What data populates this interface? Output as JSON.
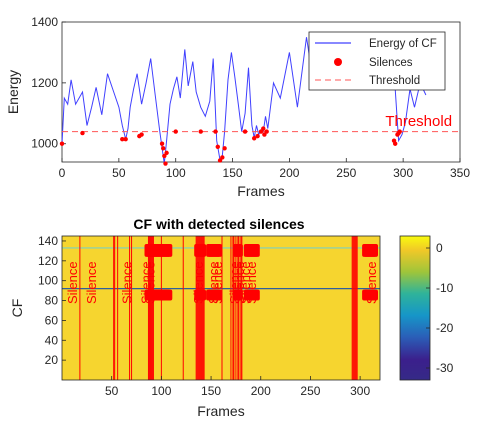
{
  "chart_data": [
    {
      "type": "line",
      "title": "",
      "xlabel": "Frames",
      "ylabel": "Energy",
      "xlim": [
        0,
        350
      ],
      "ylim": [
        940,
        1400
      ],
      "xticks": [
        0,
        50,
        100,
        150,
        200,
        250,
        300,
        350
      ],
      "yticks": [
        1000,
        1200,
        1400
      ],
      "legend_position": "top-right",
      "annotation": {
        "text": "Threshold",
        "x": 343,
        "y": 1058
      },
      "threshold": 1040,
      "series": [
        {
          "name": "Energy of CF",
          "color": "#4040ff",
          "x": [
            0,
            2,
            5,
            8,
            12,
            18,
            22,
            26,
            30,
            35,
            40,
            45,
            50,
            53,
            56,
            58,
            60,
            63,
            66,
            70,
            74,
            78,
            82,
            86,
            89,
            90,
            92,
            95,
            98,
            101,
            104,
            108,
            111,
            115,
            118,
            122,
            126,
            130,
            133,
            136,
            139,
            141,
            143,
            146,
            149,
            152,
            155,
            158,
            161,
            164,
            167,
            169,
            171,
            173,
            175,
            177,
            179,
            181,
            186,
            192,
            200,
            207,
            215,
            222,
            230,
            240,
            250,
            262,
            275,
            283,
            290,
            293,
            296,
            299,
            302,
            306,
            310,
            315,
            320
          ],
          "y": [
            1000,
            1150,
            1130,
            1210,
            1130,
            1170,
            1060,
            1120,
            1185,
            1095,
            1230,
            1175,
            1120,
            1060,
            1015,
            1050,
            1120,
            1180,
            1230,
            1130,
            1200,
            1280,
            1160,
            1040,
            960,
            935,
            1010,
            1130,
            1180,
            1220,
            1150,
            1310,
            1190,
            1270,
            1170,
            1120,
            1090,
            1140,
            1280,
            1010,
            945,
            960,
            1040,
            1210,
            1300,
            1220,
            1130,
            1040,
            1100,
            1250,
            1060,
            1020,
            1060,
            1030,
            1045,
            1040,
            1090,
            1050,
            1200,
            1150,
            1300,
            1120,
            1350,
            1180,
            1320,
            1250,
            1320,
            1300,
            1330,
            1180,
            1320,
            1180,
            1010,
            1030,
            1070,
            1180,
            1120,
            1200,
            1160
          ]
        },
        {
          "name": "Silences",
          "color": "#ff0000",
          "x": [
            0,
            18,
            53,
            56,
            68,
            70,
            88,
            89,
            90,
            91,
            92,
            100,
            122,
            135,
            137,
            139,
            141,
            143,
            161,
            169,
            172,
            175,
            177,
            178,
            180,
            292,
            293,
            295,
            296,
            297
          ],
          "y": [
            1000,
            1035,
            1015,
            1015,
            1025,
            1030,
            1000,
            985,
            960,
            935,
            970,
            1040,
            1040,
            1040,
            990,
            945,
            955,
            985,
            1040,
            1018,
            1025,
            1040,
            1050,
            1030,
            1040,
            1010,
            1000,
            1030,
            1035,
            1040
          ]
        },
        {
          "name": "Threshold",
          "color": "#ff5555",
          "x": [
            0,
            350
          ],
          "y": [
            1040,
            1040
          ]
        }
      ]
    },
    {
      "type": "heatmap",
      "title": "CF with detected silences",
      "xlabel": "Frames",
      "ylabel": "CF",
      "xlim": [
        0,
        320
      ],
      "ylim": [
        0,
        145
      ],
      "xticks": [
        50,
        100,
        150,
        200,
        250,
        300
      ],
      "yticks": [
        20,
        40,
        60,
        80,
        100,
        120,
        140
      ],
      "colorbar": {
        "ticks": [
          0,
          -10,
          -20,
          -30
        ],
        "range": [
          -33,
          3
        ],
        "colors": [
          "#fde725",
          "#d5e21a",
          "#8fd744",
          "#35b779",
          "#21918c",
          "#31688e",
          "#443983",
          "#3b1f8c",
          "#352a87"
        ]
      },
      "background_color": "#f6d52f",
      "silence_color": "#ff0000",
      "silence_frames": [
        18,
        52,
        53,
        56,
        68,
        70,
        87,
        88,
        89,
        90,
        91,
        92,
        100,
        122,
        135,
        136,
        137,
        138,
        139,
        140,
        141,
        142,
        143,
        161,
        170,
        172,
        173,
        175,
        177,
        178,
        180,
        181,
        292,
        293,
        294,
        295,
        296,
        297
      ],
      "horizontal_lines": [
        {
          "y": 133,
          "color": "#7bd0c0"
        },
        {
          "y": 92,
          "color": "#2f5f9e"
        }
      ],
      "silence_label": "Silence",
      "silence_label_frames": [
        10,
        29,
        65,
        84,
        88,
        137,
        152,
        156,
        173,
        178,
        184,
        190,
        311
      ],
      "silence_marker_frames": [
        86,
        88,
        90,
        92,
        94,
        96,
        98,
        100,
        102,
        104,
        106,
        108,
        136,
        138,
        140,
        142,
        148,
        150,
        152,
        154,
        156,
        158,
        175,
        177,
        179,
        186,
        188,
        190,
        192,
        194,
        196,
        305,
        307,
        309,
        311,
        313,
        315
      ]
    }
  ]
}
